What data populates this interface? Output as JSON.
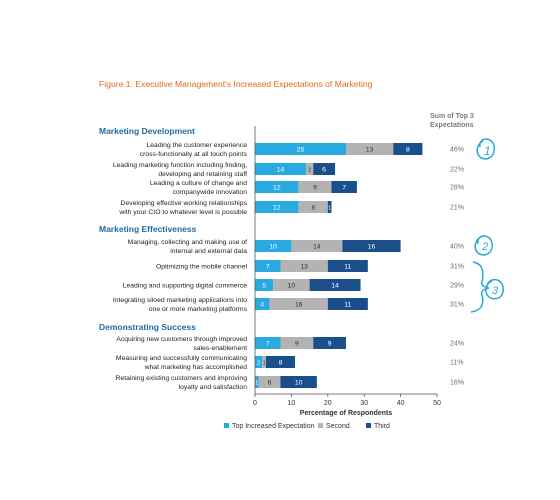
{
  "figure_title": "Figure 1. Executive Management's Increased Expectations of Marketing",
  "sum_header": [
    "Sum of Top 3",
    "Expectations"
  ],
  "colors": {
    "first": "#29abe2",
    "second": "#b3b3b3",
    "third": "#1b4f8c",
    "title": "#e06a1a",
    "section": "#1e6aa6",
    "annotation": "#29a9d6",
    "percent": "#6d6d6d"
  },
  "annotations": [
    "1",
    "2",
    "3"
  ],
  "chart_data": {
    "type": "bar",
    "orientation": "horizontal",
    "stacked": true,
    "xlabel": "Percentage of Respondents",
    "xlim": [
      0,
      50
    ],
    "xticks": [
      "0",
      "10",
      "20",
      "30",
      "40",
      "50"
    ],
    "grid": false,
    "legend_position": "bottom",
    "series_names": [
      "Top Increased Expectation",
      "Second",
      "Third"
    ],
    "groups": [
      {
        "name": "Marketing Development",
        "items": [
          {
            "label": [
              "Leading the customer experience",
              "cross-functionally at all touch points"
            ],
            "values": [
              25,
              13,
              8
            ],
            "sum": "46%"
          },
          {
            "label": [
              "Leading marketing function including finding,",
              "developing and retaining staff"
            ],
            "values": [
              14,
              2,
              6
            ],
            "sum": "22%"
          },
          {
            "label": [
              "Leading a culture of change and",
              "companywide innovation"
            ],
            "values": [
              12,
              9,
              7
            ],
            "sum": "28%"
          },
          {
            "label": [
              "Developing effective working relationships",
              "with your CIO to whatever level is possible"
            ],
            "values": [
              12,
              8,
              1
            ],
            "sum": "21%"
          }
        ]
      },
      {
        "name": "Marketing Effectiveness",
        "items": [
          {
            "label": [
              "Managing, collecting and making use of",
              "internal and external data"
            ],
            "values": [
              10,
              14,
              16
            ],
            "sum": "40%"
          },
          {
            "label": [
              "Optimizing the mobile channel"
            ],
            "values": [
              7,
              13,
              11
            ],
            "sum": "31%"
          },
          {
            "label": [
              "Leading and supporting digital commerce"
            ],
            "values": [
              5,
              10,
              14
            ],
            "sum": "29%"
          },
          {
            "label": [
              "Integrating siloed marketing applications into",
              "one or more marketing platforms"
            ],
            "values": [
              4,
              16,
              11
            ],
            "sum": "31%"
          }
        ]
      },
      {
        "name": "Demonstrating Success",
        "items": [
          {
            "label": [
              "Acquiring new customers through improved",
              "sales-enablement"
            ],
            "values": [
              7,
              9,
              9
            ],
            "sum": "24%"
          },
          {
            "label": [
              "Measuring and successfully communicating",
              "what marketing has accomplished"
            ],
            "values": [
              2,
              1,
              8
            ],
            "sum": "11%"
          },
          {
            "label": [
              "Retaining existing customers and improving",
              "loyalty and satisfaction"
            ],
            "values": [
              1,
              6,
              10
            ],
            "sum": "16%"
          }
        ]
      }
    ]
  }
}
